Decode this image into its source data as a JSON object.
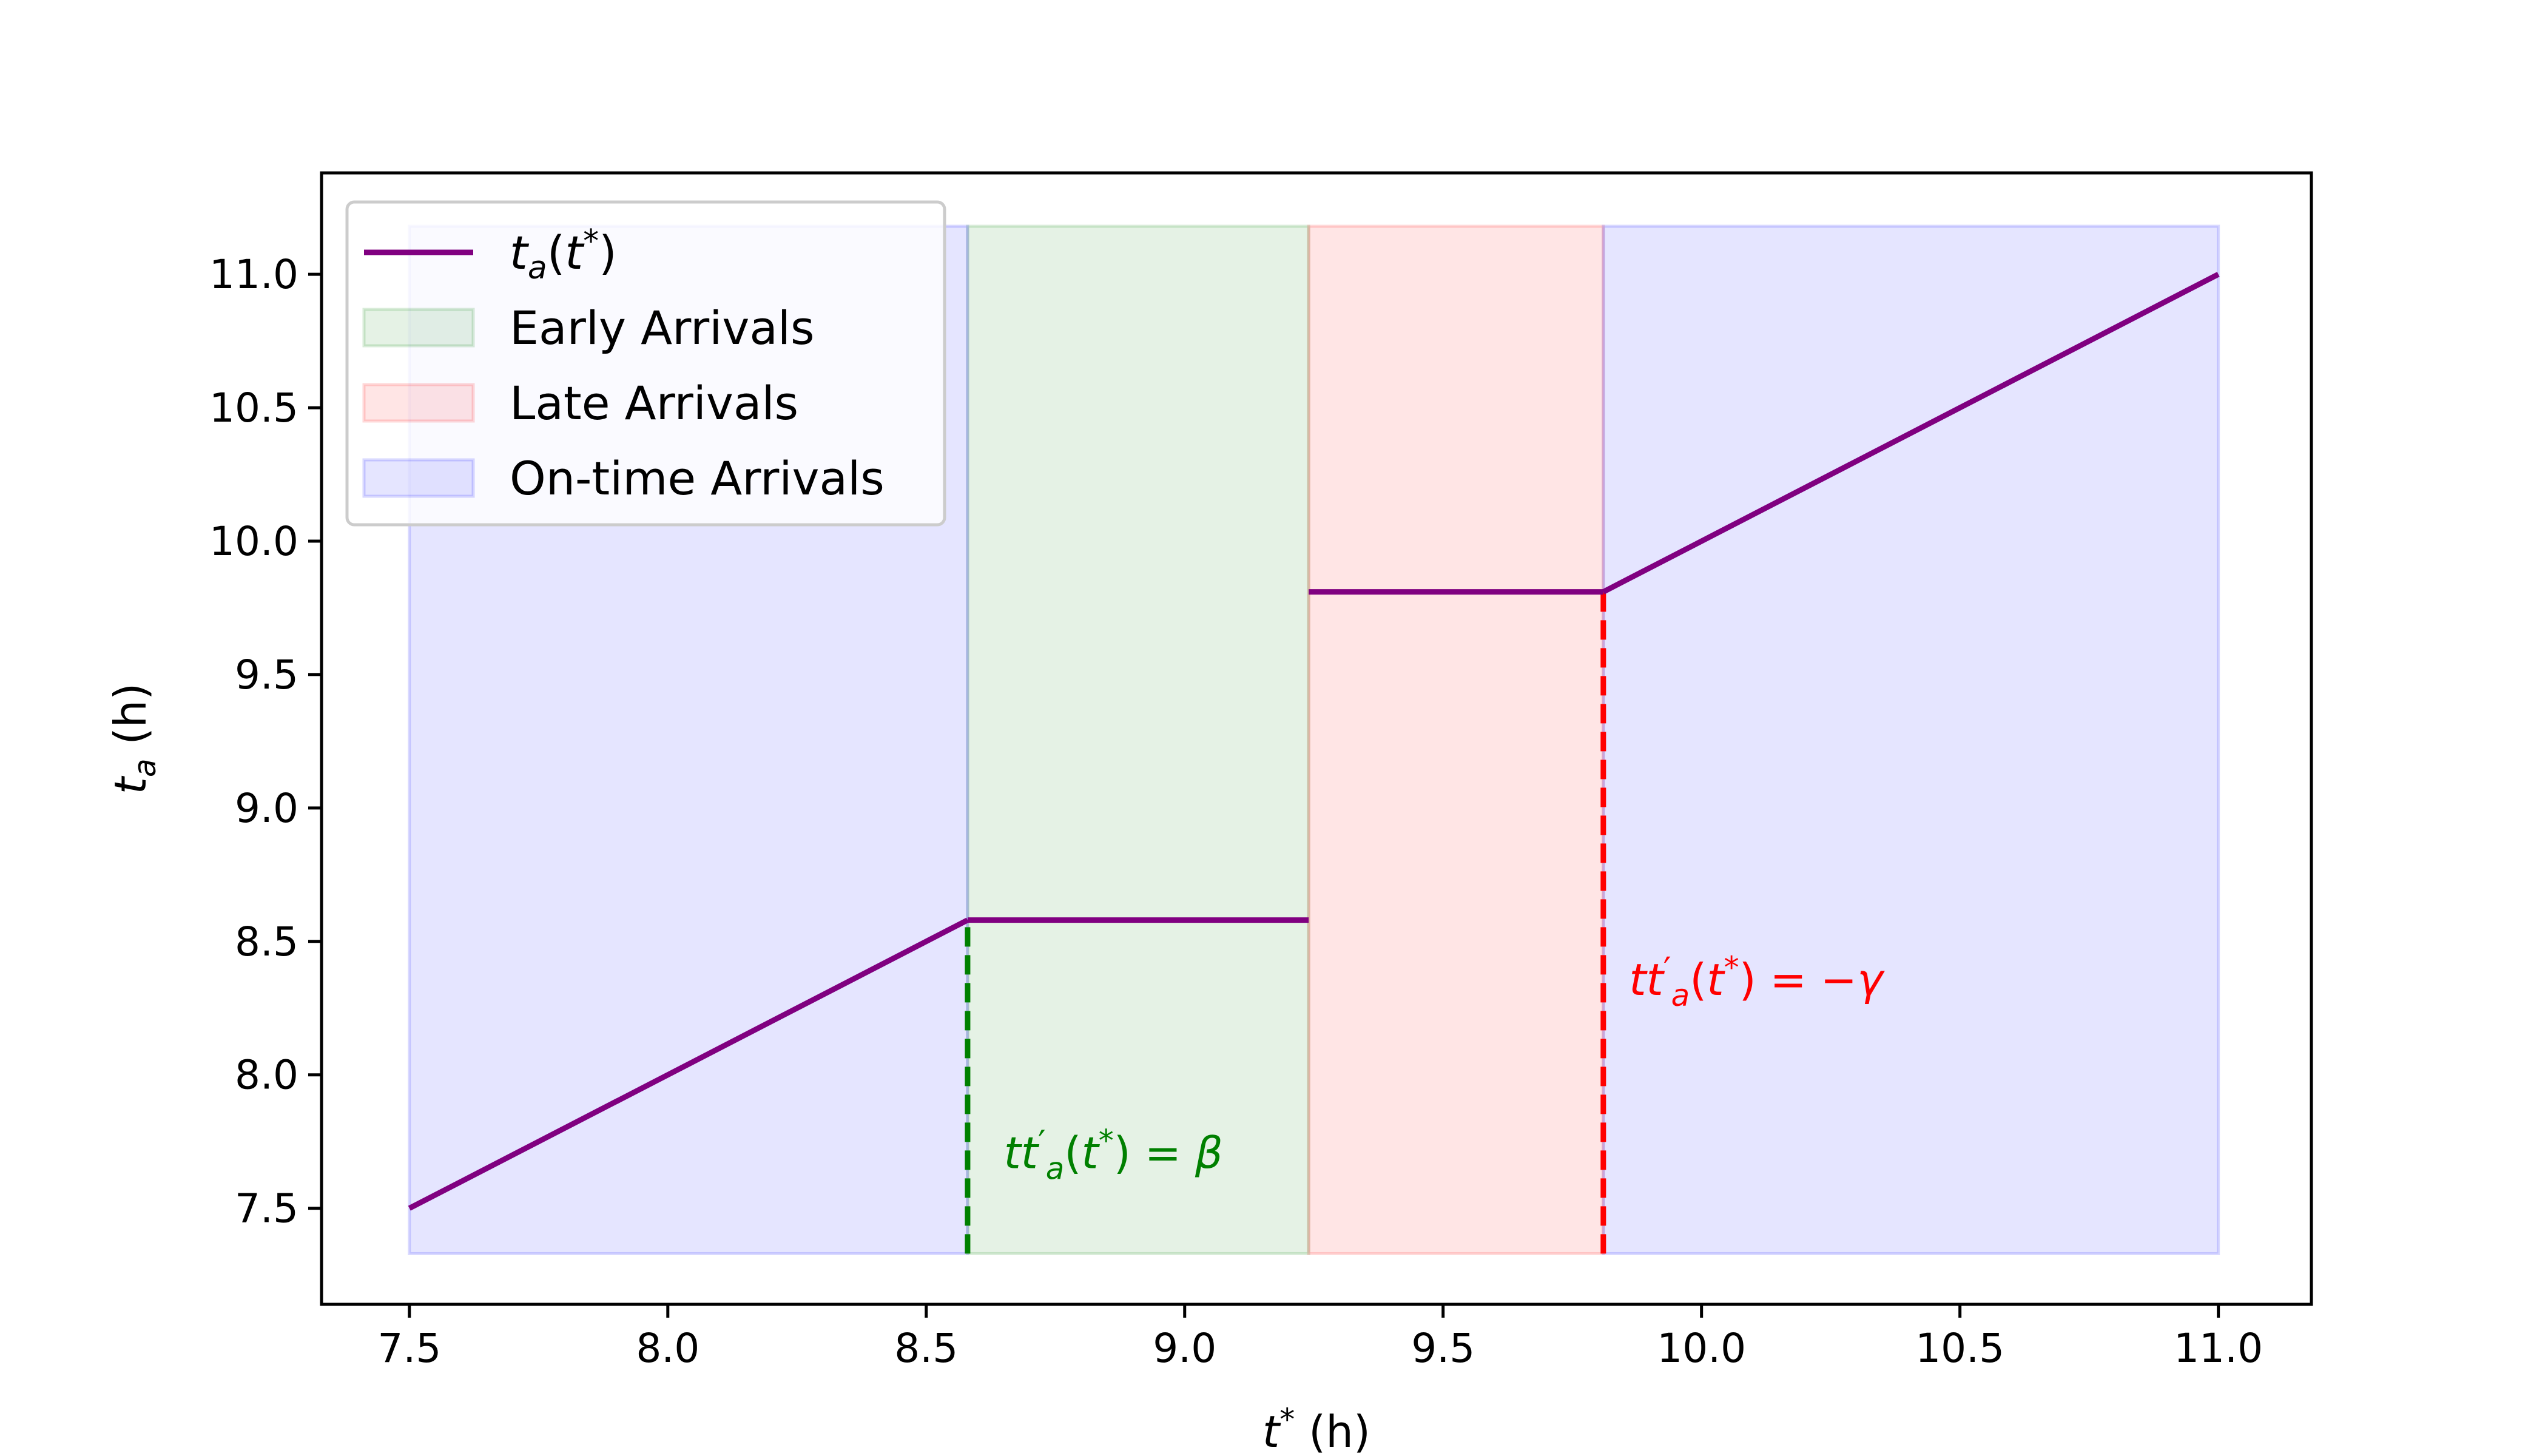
{
  "chart_data": {
    "type": "line",
    "xlabel": "t* (h)",
    "ylabel": "t_a (h)",
    "xlim": [
      7.33,
      11.18
    ],
    "ylim": [
      7.14,
      11.38
    ],
    "xticks": [
      7.5,
      8.0,
      8.5,
      9.0,
      9.5,
      10.0,
      10.5,
      11.0
    ],
    "xtick_labels": [
      "7.5",
      "8.0",
      "8.5",
      "9.0",
      "9.5",
      "10.0",
      "10.5",
      "11.0"
    ],
    "yticks": [
      7.5,
      8.0,
      8.5,
      9.0,
      9.5,
      10.0,
      10.5,
      11.0
    ],
    "ytick_labels": [
      "7.5",
      "8.0",
      "8.5",
      "9.0",
      "9.5",
      "10.0",
      "10.5",
      "11.0"
    ],
    "grid": false,
    "legend_position": "top-left",
    "series": [
      {
        "name": "t_a(t*)",
        "color": "#800080",
        "segments": [
          {
            "x": [
              7.5,
              8.58
            ],
            "y": [
              7.5,
              8.58
            ]
          },
          {
            "x": [
              8.58,
              9.24
            ],
            "y": [
              8.58,
              8.58
            ]
          },
          {
            "x": [
              9.24,
              9.81
            ],
            "y": [
              9.81,
              9.81
            ]
          },
          {
            "x": [
              9.81,
              11.0
            ],
            "y": [
              9.81,
              11.0
            ]
          }
        ]
      }
    ],
    "regions": [
      {
        "name": "Early Arrivals",
        "x": [
          8.58,
          9.24
        ],
        "y": [
          7.33,
          11.18
        ],
        "color": "#008000",
        "opacity": 0.1
      },
      {
        "name": "Late Arrivals",
        "x": [
          9.24,
          9.81
        ],
        "y": [
          7.33,
          11.18
        ],
        "color": "#ff0000",
        "opacity": 0.1
      },
      {
        "name": "On-time Arrivals",
        "x": [
          7.5,
          8.58
        ],
        "y": [
          7.33,
          11.18
        ],
        "color": "#0000ff",
        "opacity": 0.1
      },
      {
        "name": "On-time Arrivals",
        "x": [
          9.81,
          11.0
        ],
        "y": [
          7.33,
          11.18
        ],
        "color": "#0000ff",
        "opacity": 0.1
      }
    ],
    "vlines": [
      {
        "x": 8.58,
        "y": [
          7.33,
          8.58
        ],
        "color": "#008000",
        "style": "dashed"
      },
      {
        "x": 9.81,
        "y": [
          7.33,
          9.81
        ],
        "color": "#ff0000",
        "style": "dashed"
      }
    ],
    "annotations": [
      {
        "text": "tt′a(t*) = β",
        "x": 8.65,
        "y": 7.65,
        "color": "#008000"
      },
      {
        "text": "tt′a(t*) = −γ",
        "x": 9.86,
        "y": 8.3,
        "color": "#ff0000"
      }
    ],
    "legend": [
      {
        "label": "t_a(t*)",
        "kind": "line",
        "color": "#800080"
      },
      {
        "label": "Early Arrivals",
        "kind": "patch",
        "color": "#008000"
      },
      {
        "label": "Late Arrivals",
        "kind": "patch",
        "color": "#ff0000"
      },
      {
        "label": "On-time Arrivals",
        "kind": "patch",
        "color": "#0000ff"
      }
    ]
  }
}
